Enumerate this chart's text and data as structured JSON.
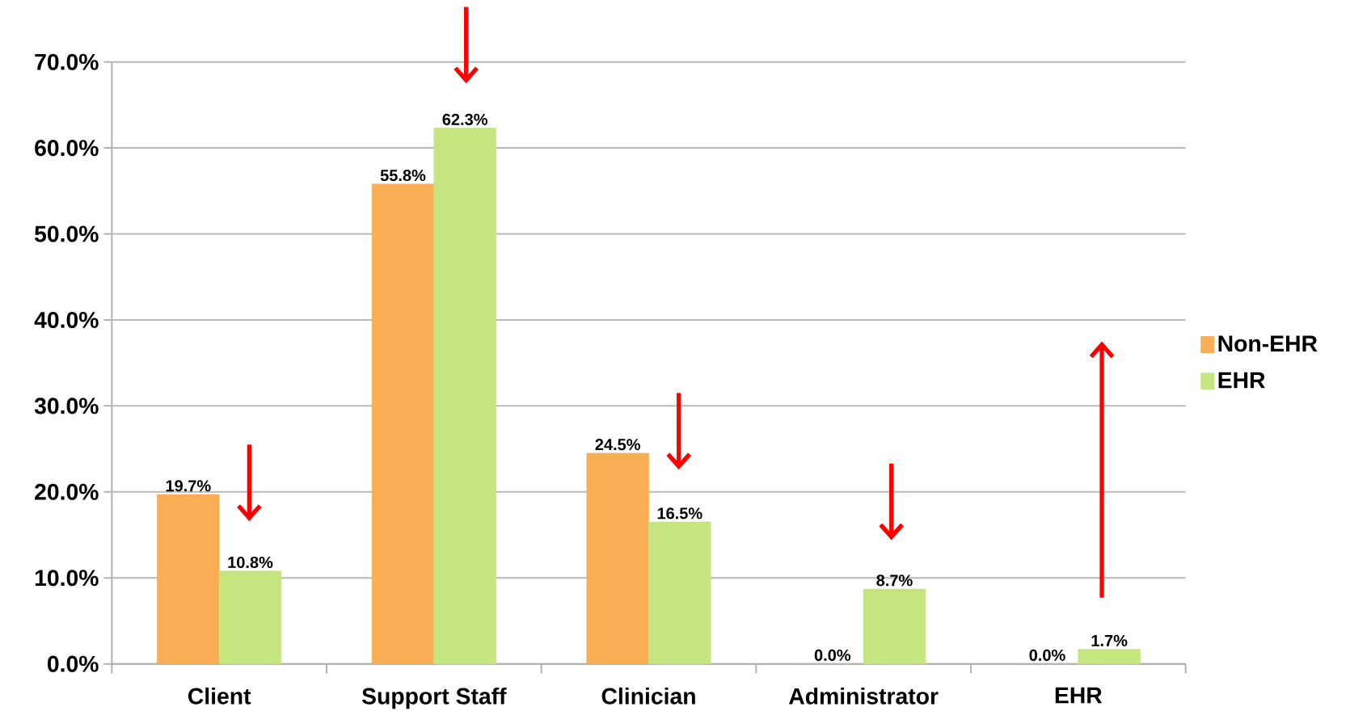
{
  "chart_data": {
    "type": "bar",
    "categories": [
      "Client",
      "Support Staff",
      "Clinician",
      "Administrator",
      "EHR"
    ],
    "series": [
      {
        "name": "Non-EHR",
        "color": "#f9ad55",
        "values": [
          19.7,
          55.8,
          24.5,
          0.0,
          0.0
        ],
        "value_labels": [
          "19.7%",
          "55.8%",
          "24.5%",
          "0.0%",
          "0.0%"
        ]
      },
      {
        "name": "EHR",
        "color": "#c5e57e",
        "values": [
          10.8,
          62.3,
          16.5,
          8.7,
          1.7
        ],
        "value_labels": [
          "10.8%",
          "62.3%",
          "16.5%",
          "8.7%",
          "1.7%"
        ]
      }
    ],
    "ylim": [
      0,
      70
    ],
    "yticks": [
      {
        "value": 0,
        "label": "0.0%"
      },
      {
        "value": 10,
        "label": "10.0%"
      },
      {
        "value": 20,
        "label": "20.0%"
      },
      {
        "value": 30,
        "label": "30.0%"
      },
      {
        "value": 40,
        "label": "40.0%"
      },
      {
        "value": 50,
        "label": "50.0%"
      },
      {
        "value": 60,
        "label": "60.0%"
      },
      {
        "value": 70,
        "label": "70.0%"
      }
    ],
    "grid": "y",
    "legend": "right"
  }
}
